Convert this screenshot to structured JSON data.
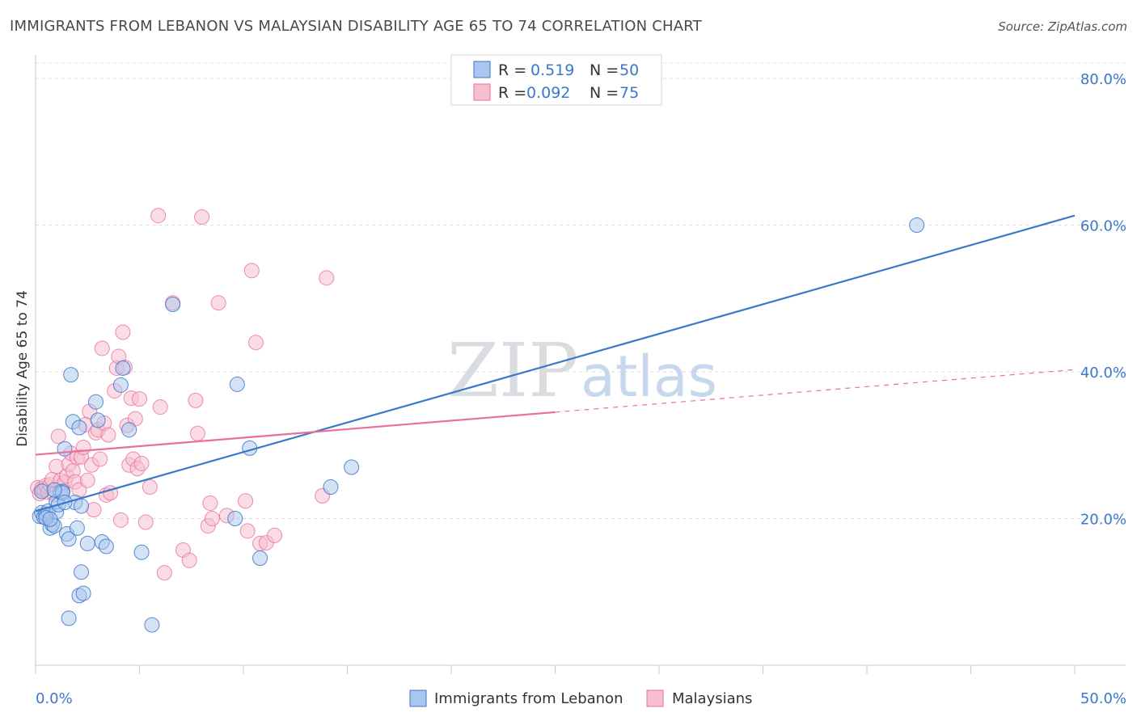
{
  "title": "IMMIGRANTS FROM LEBANON VS MALAYSIAN DISABILITY AGE 65 TO 74 CORRELATION CHART",
  "source": "Source: ZipAtlas.com",
  "watermark": {
    "zip": "ZIP",
    "atlas": "atlas"
  },
  "legend": {
    "r_label": "R =",
    "n_label": "N =",
    "entries": [
      {
        "r": "0.519",
        "n": "50"
      },
      {
        "r": "0.092",
        "n": "75"
      }
    ]
  },
  "chart_data": {
    "type": "scatter",
    "title": "IMMIGRANTS FROM LEBANON VS MALAYSIAN DISABILITY AGE 65 TO 74 CORRELATION CHART",
    "xlabel": "",
    "ylabel": "Disability Age 65 to 74",
    "xlim": [
      0,
      50
    ],
    "ylim": [
      0,
      83
    ],
    "x_tick_labels": [
      "0.0%",
      "50.0%"
    ],
    "y_ticks": [
      20,
      40,
      60,
      80
    ],
    "y_tick_labels": [
      "20.0%",
      "40.0%",
      "60.0%",
      "80.0%"
    ],
    "grid": true,
    "legend_position": "top-center",
    "colors": {
      "blue": "#3a78c9",
      "pink": "#e8709a",
      "blue_fill": "#a9c6ee",
      "pink_fill": "#f6bfd0"
    },
    "series": [
      {
        "name": "Immigrants from Lebanon",
        "color": "#3a78c9",
        "trend": {
          "x": [
            0,
            50
          ],
          "y": [
            21.0,
            61.3
          ],
          "style": "solid"
        },
        "points": [
          [
            0.2,
            20.3
          ],
          [
            0.3,
            20.8
          ],
          [
            0.4,
            20.2
          ],
          [
            0.5,
            20.6
          ],
          [
            0.6,
            21.0
          ],
          [
            0.7,
            18.7
          ],
          [
            0.8,
            19.2
          ],
          [
            0.9,
            19.0
          ],
          [
            1.0,
            20.9
          ],
          [
            1.0,
            22.3
          ],
          [
            1.1,
            21.9
          ],
          [
            1.2,
            23.6
          ],
          [
            1.3,
            23.7
          ],
          [
            1.4,
            29.5
          ],
          [
            1.5,
            17.9
          ],
          [
            1.6,
            17.2
          ],
          [
            1.7,
            39.6
          ],
          [
            1.8,
            33.2
          ],
          [
            1.9,
            22.2
          ],
          [
            2.0,
            18.7
          ],
          [
            2.1,
            32.4
          ],
          [
            2.2,
            12.7
          ],
          [
            2.2,
            21.7
          ],
          [
            2.1,
            9.5
          ],
          [
            2.3,
            9.8
          ],
          [
            2.5,
            16.6
          ],
          [
            1.6,
            6.4
          ],
          [
            2.9,
            35.9
          ],
          [
            3.0,
            33.4
          ],
          [
            3.2,
            16.8
          ],
          [
            3.4,
            16.2
          ],
          [
            4.1,
            38.2
          ],
          [
            4.2,
            40.5
          ],
          [
            4.5,
            32.1
          ],
          [
            5.1,
            15.4
          ],
          [
            5.6,
            5.5
          ],
          [
            6.6,
            49.2
          ],
          [
            9.7,
            38.3
          ],
          [
            9.6,
            20.0
          ],
          [
            10.3,
            29.6
          ],
          [
            10.8,
            14.6
          ],
          [
            14.2,
            24.3
          ],
          [
            15.2,
            27.0
          ],
          [
            42.4,
            60.0
          ],
          [
            0.3,
            23.7
          ],
          [
            0.5,
            20.1
          ],
          [
            0.7,
            19.9
          ],
          [
            1.3,
            23.5
          ],
          [
            0.9,
            23.9
          ],
          [
            1.4,
            22.2
          ]
        ]
      },
      {
        "name": "Malaysians",
        "color": "#e8709a",
        "trend": {
          "x": [
            0,
            25
          ],
          "y": [
            28.7,
            34.5
          ],
          "style": "solid",
          "extended": {
            "x": [
              25,
              50
            ],
            "y": [
              34.5,
              40.3
            ],
            "style": "dashed"
          }
        },
        "points": [
          [
            0.1,
            24.2
          ],
          [
            0.2,
            23.4
          ],
          [
            0.3,
            24.1
          ],
          [
            0.4,
            23.9
          ],
          [
            0.5,
            24.5
          ],
          [
            0.6,
            23.6
          ],
          [
            0.7,
            24.6
          ],
          [
            0.8,
            25.3
          ],
          [
            0.9,
            23.3
          ],
          [
            1.0,
            27.1
          ],
          [
            1.1,
            31.2
          ],
          [
            1.2,
            25.2
          ],
          [
            1.3,
            23.7
          ],
          [
            1.4,
            24.9
          ],
          [
            1.5,
            25.8
          ],
          [
            1.6,
            27.4
          ],
          [
            1.7,
            28.9
          ],
          [
            1.8,
            26.5
          ],
          [
            1.9,
            25.0
          ],
          [
            2.0,
            28.3
          ],
          [
            2.1,
            23.9
          ],
          [
            2.2,
            28.4
          ],
          [
            2.3,
            29.7
          ],
          [
            2.4,
            32.8
          ],
          [
            2.5,
            25.2
          ],
          [
            2.6,
            34.6
          ],
          [
            2.7,
            27.3
          ],
          [
            2.8,
            21.2
          ],
          [
            2.9,
            31.7
          ],
          [
            3.0,
            32.1
          ],
          [
            3.1,
            28.1
          ],
          [
            3.2,
            43.2
          ],
          [
            3.3,
            33.0
          ],
          [
            3.4,
            23.2
          ],
          [
            3.5,
            31.4
          ],
          [
            3.6,
            23.5
          ],
          [
            3.8,
            37.4
          ],
          [
            3.9,
            40.5
          ],
          [
            4.0,
            42.1
          ],
          [
            4.1,
            19.8
          ],
          [
            4.2,
            45.4
          ],
          [
            4.3,
            40.6
          ],
          [
            4.4,
            32.7
          ],
          [
            4.5,
            27.3
          ],
          [
            4.6,
            36.4
          ],
          [
            4.7,
            28.1
          ],
          [
            4.8,
            33.6
          ],
          [
            4.9,
            26.8
          ],
          [
            5.0,
            36.3
          ],
          [
            5.1,
            27.5
          ],
          [
            5.3,
            19.5
          ],
          [
            5.5,
            24.3
          ],
          [
            5.9,
            61.3
          ],
          [
            6.0,
            35.2
          ],
          [
            6.2,
            12.6
          ],
          [
            6.6,
            49.4
          ],
          [
            7.1,
            15.7
          ],
          [
            7.4,
            14.3
          ],
          [
            7.7,
            36.1
          ],
          [
            7.8,
            31.6
          ],
          [
            8.0,
            61.1
          ],
          [
            8.3,
            19.0
          ],
          [
            8.4,
            22.1
          ],
          [
            8.5,
            20.0
          ],
          [
            8.8,
            49.4
          ],
          [
            9.2,
            20.4
          ],
          [
            10.1,
            22.4
          ],
          [
            10.2,
            18.3
          ],
          [
            10.4,
            53.8
          ],
          [
            10.6,
            44.0
          ],
          [
            10.8,
            16.6
          ],
          [
            11.1,
            16.7
          ],
          [
            11.5,
            17.7
          ],
          [
            13.8,
            23.1
          ],
          [
            14.0,
            52.8
          ]
        ]
      }
    ]
  },
  "bottom_legend": [
    "Immigrants from Lebanon",
    "Malaysians"
  ]
}
